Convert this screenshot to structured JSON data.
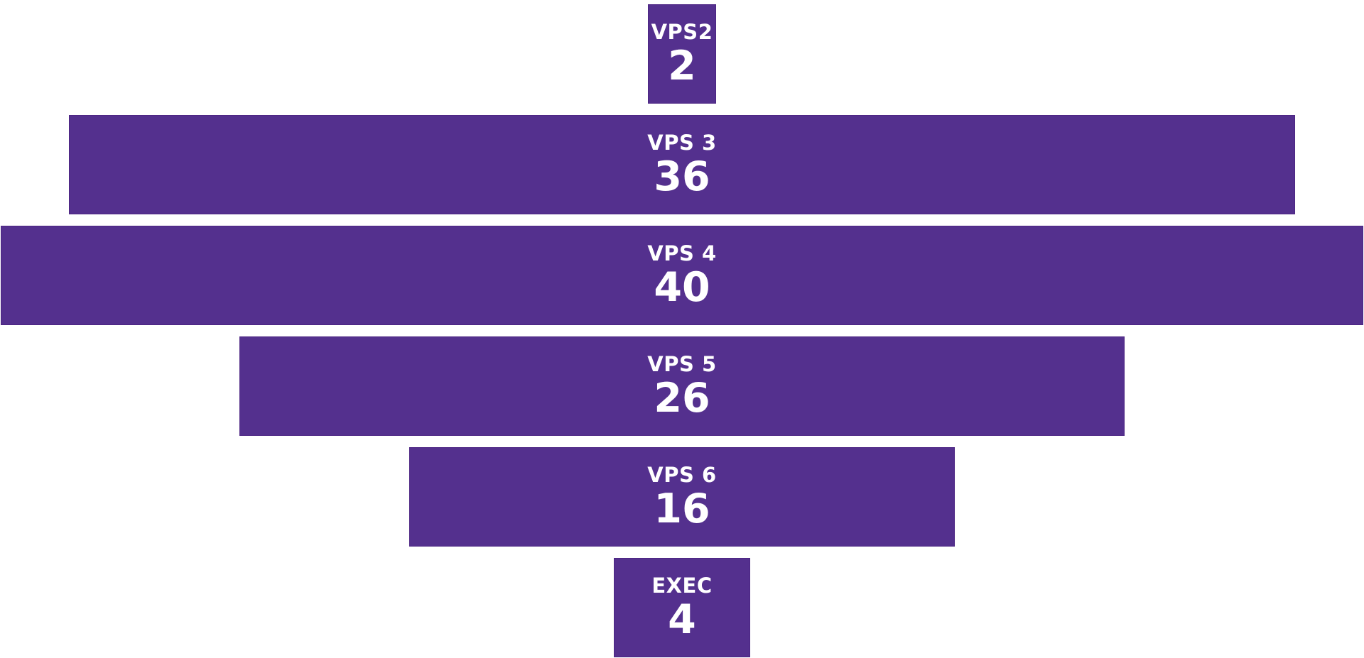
{
  "chart_data": {
    "type": "bar",
    "orientation": "horizontal-centered",
    "categories": [
      "VPS2",
      "VPS 3",
      "VPS 4",
      "VPS 5",
      "VPS 6",
      "EXEC"
    ],
    "values": [
      2,
      36,
      40,
      26,
      16,
      4
    ],
    "bar_color": "#54308e",
    "label_color": "#ffffff",
    "title": "",
    "xlabel": "",
    "ylabel": "",
    "legend": false,
    "grid": false
  }
}
